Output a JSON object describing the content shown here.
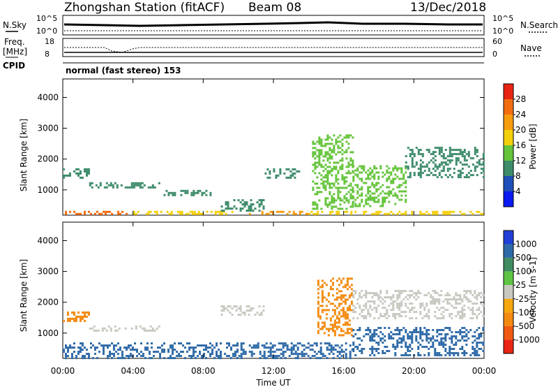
{
  "header": {
    "title": "Zhongshan Station (fitACF)",
    "beam": "Beam 08",
    "date": "13/Dec/2018"
  },
  "noise_panel": {
    "left_label": "N.Sky",
    "left_ticks": [
      "10^5",
      "10^0"
    ],
    "right_ticks": [
      "10^5",
      "10^0"
    ],
    "right_label": "N.Search"
  },
  "freq_panel": {
    "left_label_1": "Freq.",
    "left_label_2": "[MHz]",
    "left_ticks": [
      "18",
      "8"
    ],
    "right_ticks": [
      "60",
      "0"
    ],
    "right_label": "Nave",
    "cpid_label": "CPID",
    "cpid_text": "normal (fast stereo) 153"
  },
  "x_axis": {
    "title": "Time UT",
    "ticks": [
      "00:00",
      "04:00",
      "08:00",
      "12:00",
      "16:00",
      "20:00",
      "00:00"
    ]
  },
  "chart_data": [
    {
      "type": "heatmap",
      "title": "",
      "ylabel": "Slant Range [km]",
      "xlabel": "",
      "y_ticks": [
        "1000",
        "2000",
        "3000",
        "4000"
      ],
      "ylim": [
        180,
        4600
      ],
      "colorbar": {
        "label": "Power [dB]",
        "ticks": [
          "4",
          "8",
          "12",
          "16",
          "20",
          "24",
          "28"
        ],
        "colors": [
          "#0a1af0",
          "#1f4fb8",
          "#3d8c6a",
          "#64c43a",
          "#f4cf0c",
          "#f79b0f",
          "#f16d10",
          "#e82413"
        ]
      },
      "echo_regions": [
        {
          "t": [
            0.0,
            4.0
          ],
          "r": [
            200,
            320
          ],
          "value": 24
        },
        {
          "t": [
            4.0,
            10.0
          ],
          "r": [
            200,
            320
          ],
          "value": 16
        },
        {
          "t": [
            10.0,
            14.0
          ],
          "r": [
            200,
            320
          ],
          "value": 20
        },
        {
          "t": [
            14.0,
            24.0
          ],
          "r": [
            200,
            320
          ],
          "value": 16
        },
        {
          "t": [
            0.0,
            1.5
          ],
          "r": [
            1400,
            1700
          ],
          "value": 8
        },
        {
          "t": [
            1.5,
            5.5
          ],
          "r": [
            1050,
            1250
          ],
          "value": 8
        },
        {
          "t": [
            5.5,
            8.5
          ],
          "r": [
            800,
            1000
          ],
          "value": 8
        },
        {
          "t": [
            9.0,
            11.5
          ],
          "r": [
            300,
            700
          ],
          "value": 8
        },
        {
          "t": [
            11.5,
            13.5
          ],
          "r": [
            1400,
            1700
          ],
          "value": 8
        },
        {
          "t": [
            14.2,
            16.5
          ],
          "r": [
            400,
            2800
          ],
          "value": 12
        },
        {
          "t": [
            16.5,
            19.5
          ],
          "r": [
            500,
            1800
          ],
          "value": 12
        },
        {
          "t": [
            19.5,
            24.0
          ],
          "r": [
            1400,
            2400
          ],
          "value": 8
        }
      ]
    },
    {
      "type": "heatmap",
      "title": "",
      "ylabel": "Slant Range [km]",
      "xlabel": "Time UT",
      "y_ticks": [
        "1000",
        "2000",
        "3000",
        "4000"
      ],
      "ylim": [
        180,
        4600
      ],
      "colorbar": {
        "label": "Velocity [m s-1]",
        "ticks": [
          "1000",
          "500",
          "100",
          "25",
          "-25",
          "-100",
          "-500",
          "-1000"
        ],
        "colors": [
          "#1f3fd6",
          "#2f6aa8",
          "#3f8c60",
          "#5fc444",
          "#c8c8c0",
          "#f6a70f",
          "#f38a10",
          "#f05a12",
          "#e82413"
        ]
      },
      "echo_regions": [
        {
          "t": [
            0.0,
            1.5
          ],
          "r": [
            1400,
            1700
          ],
          "value": -200
        },
        {
          "t": [
            1.5,
            5.5
          ],
          "r": [
            1050,
            1250
          ],
          "value": 0
        },
        {
          "t": [
            0.0,
            10.0
          ],
          "r": [
            200,
            700
          ],
          "value": 150
        },
        {
          "t": [
            9.0,
            11.5
          ],
          "r": [
            1600,
            1900
          ],
          "value": 0
        },
        {
          "t": [
            10.0,
            16.5
          ],
          "r": [
            200,
            700
          ],
          "value": 150
        },
        {
          "t": [
            14.5,
            16.5
          ],
          "r": [
            900,
            2800
          ],
          "value": -200
        },
        {
          "t": [
            16.5,
            24.0
          ],
          "r": [
            1500,
            2400
          ],
          "value": 0
        },
        {
          "t": [
            16.5,
            24.0
          ],
          "r": [
            300,
            1200
          ],
          "value": 150
        }
      ]
    }
  ]
}
